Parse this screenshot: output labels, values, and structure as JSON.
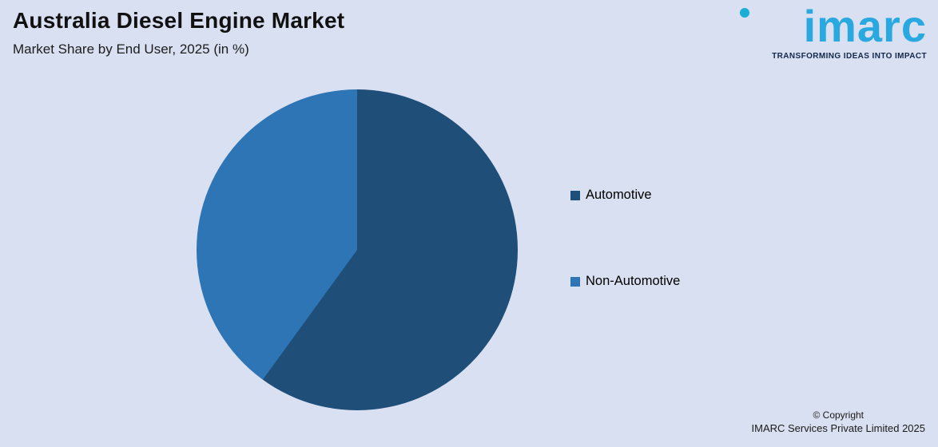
{
  "header": {
    "title": "Australia Diesel Engine Market",
    "subtitle": "Market Share by End User, 2025 (in %)"
  },
  "logo": {
    "text": "imarc",
    "tagline": "TRANSFORMING IDEAS INTO IMPACT",
    "text_color": "#29a9e0",
    "dot_color": "#1aaed6",
    "tagline_color": "#12284b"
  },
  "chart_data": {
    "type": "pie",
    "title": "Australia Diesel Engine Market",
    "subtitle": "Market Share by End User, 2025 (in %)",
    "categories": [
      "Automotive",
      "Non-Automotive"
    ],
    "values": [
      60,
      40
    ],
    "colors": [
      "#1f4e79",
      "#2e75b6"
    ],
    "start_angle_deg": 0,
    "direction": "clockwise",
    "legend_position": "right",
    "data_labels": "none"
  },
  "legend": {
    "items": [
      {
        "label": "Automotive",
        "color": "#1f4e79"
      },
      {
        "label": "Non-Automotive",
        "color": "#2e75b6"
      }
    ]
  },
  "footer": {
    "line1": "© Copyright",
    "line2": "IMARC Services Private Limited 2025"
  },
  "page": {
    "background": "#d9e0f1"
  }
}
